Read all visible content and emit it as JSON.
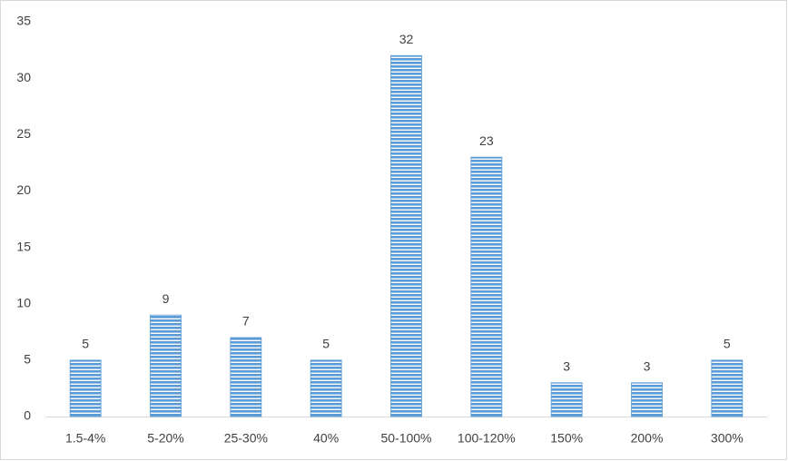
{
  "chart_data": {
    "type": "bar",
    "categories": [
      "1.5-4%",
      "5-20%",
      "25-30%",
      "40%",
      "50-100%",
      "100-120%",
      "150%",
      "200%",
      "300%"
    ],
    "values": [
      5,
      9,
      7,
      5,
      32,
      23,
      3,
      3,
      5
    ],
    "color": "#5b9bd5",
    "ylim": [
      0,
      35
    ],
    "yticks": [
      0,
      5,
      10,
      15,
      20,
      25,
      30,
      35
    ],
    "data_labels": true
  }
}
